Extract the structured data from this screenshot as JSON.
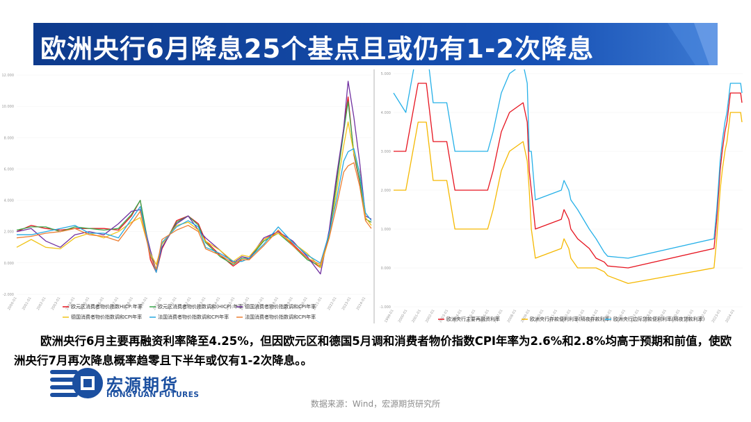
{
  "page": {
    "title": "欧洲央行6月降息25个基点且或仍有1-2次降息",
    "body_text": "欧洲央行6月主要再融资利率降至4.25%，但因欧元区和德国5月调和消费者物价指数CPI年率为2.6%和2.8%均高于预期和前值，使欧洲央行7月再次降息概率趋零且下半年或仅有1-2次降息。。",
    "source": "数据来源：Wind，宏源期货研究所",
    "logo_cn": "宏源期货",
    "logo_en": "HONGYUAN FUTURES"
  },
  "colors": {
    "banner": "#0d3a8c",
    "banner_light": "#3c79d2",
    "logo": "#1b4fa0"
  },
  "chart_data": [
    {
      "type": "line",
      "title": "",
      "ylim": [
        -2,
        12
      ],
      "yticks": [
        "-2.000",
        "0.000",
        "2.000",
        "4.000",
        "6.000",
        "8.000",
        "10.000",
        "12.000"
      ],
      "xlim": [
        2000,
        2024.4
      ],
      "x_range_label": "2000-01 至 2024-05",
      "legend_position": "bottom",
      "series": [
        {
          "name": "欧元区消费者物价指数HICP:年率",
          "color": "#e6131e",
          "x": [
            2000,
            2001,
            2002,
            2003,
            2004,
            2005,
            2006,
            2007,
            2007.9,
            2008.5,
            2009.2,
            2009.6,
            2010,
            2011,
            2011.8,
            2012.5,
            2013,
            2014,
            2014.9,
            2015.5,
            2016,
            2017,
            2018,
            2019,
            2020,
            2020.9,
            2021.5,
            2022,
            2022.5,
            2022.8,
            2023.2,
            2023.6,
            2024,
            2024.4
          ],
          "y": [
            2.0,
            2.4,
            2.2,
            2.1,
            2.2,
            2.2,
            2.2,
            2.1,
            3.0,
            4.0,
            0.2,
            -0.6,
            0.9,
            2.7,
            3.0,
            2.5,
            1.4,
            0.5,
            -0.2,
            0.2,
            0.2,
            1.5,
            2.0,
            1.2,
            0.3,
            -0.3,
            1.9,
            5.1,
            8.6,
            10.6,
            6.9,
            5.2,
            2.8,
            2.6
          ]
        },
        {
          "name": "欧元区消费者物价指数调和(HICP):年率",
          "color": "#38a84a",
          "x": [
            2000,
            2001,
            2002,
            2003,
            2004,
            2005,
            2006,
            2007,
            2007.9,
            2008.5,
            2009.2,
            2009.6,
            2010,
            2011,
            2011.8,
            2012.5,
            2013,
            2014,
            2014.9,
            2015.5,
            2016,
            2017,
            2018,
            2019,
            2020,
            2020.9,
            2021.5,
            2022,
            2022.5,
            2022.8,
            2023.2,
            2023.6,
            2024,
            2024.4
          ],
          "y": [
            2.1,
            2.3,
            2.3,
            2.0,
            2.3,
            2.2,
            2.1,
            2.2,
            3.1,
            4.0,
            0.5,
            -0.4,
            1.0,
            2.6,
            3.0,
            2.4,
            1.3,
            0.4,
            -0.1,
            0.3,
            0.3,
            1.4,
            1.9,
            1.1,
            0.2,
            -0.2,
            1.8,
            5.0,
            8.4,
            10.3,
            7.0,
            5.3,
            2.8,
            2.6
          ]
        },
        {
          "name": "德国消费者物价指数调和CPI年率",
          "color": "#7030a0",
          "x": [
            2000,
            2001,
            2002,
            2003,
            2004,
            2005,
            2006,
            2007,
            2007.9,
            2008.5,
            2009.2,
            2009.6,
            2010,
            2011,
            2011.8,
            2012.5,
            2013,
            2014,
            2014.9,
            2015.5,
            2016,
            2017,
            2018,
            2019,
            2020,
            2020.9,
            2021.5,
            2022,
            2022.5,
            2022.8,
            2023.2,
            2023.6,
            2024,
            2024.4
          ],
          "y": [
            2.0,
            2.2,
            1.4,
            1.0,
            1.8,
            2.0,
            1.8,
            2.5,
            3.3,
            3.4,
            0.8,
            -0.5,
            1.0,
            2.5,
            3.0,
            2.1,
            1.6,
            0.8,
            0.0,
            0.4,
            0.3,
            1.6,
            2.0,
            1.4,
            0.4,
            -0.7,
            2.1,
            5.5,
            8.6,
            11.6,
            9.3,
            6.4,
            3.0,
            2.8
          ]
        },
        {
          "name": "德国消费者物价指数调和CPI年率",
          "color": "#f0c419",
          "x": [
            2000,
            2001,
            2002,
            2003,
            2004,
            2005,
            2006,
            2007,
            2007.9,
            2008.5,
            2009.2,
            2009.6,
            2010,
            2011,
            2011.8,
            2012.5,
            2013,
            2014,
            2014.9,
            2015.5,
            2016,
            2017,
            2018,
            2019,
            2020,
            2020.9,
            2021.5,
            2022,
            2022.5,
            2022.8,
            2023.2,
            2023.6,
            2024,
            2024.4
          ],
          "y": [
            1.0,
            1.5,
            1.0,
            0.9,
            1.6,
            1.9,
            1.6,
            2.0,
            2.6,
            2.9,
            0.6,
            -0.1,
            1.2,
            2.4,
            2.6,
            2.1,
            1.4,
            0.8,
            0.1,
            0.5,
            0.4,
            1.5,
            1.9,
            1.3,
            0.6,
            -0.3,
            1.6,
            4.5,
            7.5,
            9.0,
            7.0,
            5.8,
            2.9,
            2.4
          ]
        },
        {
          "name": "法国消费者物价指数调和CPI年率",
          "color": "#25a8e0",
          "x": [
            2000,
            2001,
            2002,
            2003,
            2004,
            2005,
            2006,
            2007,
            2007.9,
            2008.5,
            2009.2,
            2009.6,
            2010,
            2011,
            2011.8,
            2012.5,
            2013,
            2014,
            2014.9,
            2015.5,
            2016,
            2017,
            2018,
            2019,
            2020,
            2020.9,
            2021.5,
            2022,
            2022.5,
            2022.8,
            2023.2,
            2023.6,
            2024,
            2024.4
          ],
          "y": [
            1.8,
            1.8,
            2.0,
            2.2,
            2.4,
            1.9,
            1.9,
            1.6,
            2.8,
            3.6,
            0.5,
            -0.6,
            1.3,
            2.3,
            2.7,
            2.3,
            1.0,
            0.6,
            0.1,
            0.1,
            0.3,
            1.2,
            2.3,
            1.3,
            0.5,
            0.0,
            1.9,
            4.0,
            6.5,
            7.1,
            7.3,
            5.7,
            3.2,
            2.7
          ]
        },
        {
          "name": "法国消费者物价指数调和CPI年率",
          "color": "#ed7d31",
          "x": [
            2000,
            2001,
            2002,
            2003,
            2004,
            2005,
            2006,
            2007,
            2007.9,
            2008.5,
            2009.2,
            2009.6,
            2010,
            2011,
            2011.8,
            2012.5,
            2013,
            2014,
            2014.9,
            2015.5,
            2016,
            2017,
            2018,
            2019,
            2020,
            2020.9,
            2021.5,
            2022,
            2022.5,
            2022.8,
            2023.2,
            2023.6,
            2024,
            2024.4
          ],
          "y": [
            1.6,
            1.7,
            1.9,
            2.0,
            2.2,
            1.8,
            1.7,
            1.4,
            2.5,
            3.3,
            0.4,
            -0.4,
            1.5,
            2.1,
            2.4,
            2.0,
            0.9,
            0.5,
            0.0,
            0.2,
            0.2,
            1.1,
            2.1,
            1.1,
            0.3,
            -0.1,
            1.6,
            3.6,
            5.8,
            6.2,
            6.4,
            4.9,
            2.7,
            2.2
          ]
        }
      ]
    },
    {
      "type": "line",
      "title": "",
      "ylim": [
        -1,
        5
      ],
      "yticks": [
        "-1.000",
        "0.000",
        "1.000",
        "2.000",
        "3.000",
        "4.000",
        "5.000"
      ],
      "xlim": [
        1999,
        2024.6
      ],
      "x_range_label": "1999-01 至 2024-06",
      "legend_position": "bottom",
      "series": [
        {
          "name": "欧洲央行主要再融资利率",
          "color": "#e6131e",
          "x": [
            1999,
            1999.9,
            2000.8,
            2001.4,
            2001.9,
            2002.9,
            2003.5,
            2005.9,
            2006.3,
            2006.6,
            2006.9,
            2007.2,
            2007.5,
            2008.5,
            2008.8,
            2008.95,
            2009.1,
            2009.4,
            2011.3,
            2011.5,
            2011.85,
            2012.0,
            2012.5,
            2013.35,
            2013.85,
            2014.45,
            2014.7,
            2016.2,
            2022.5,
            2022.7,
            2022.85,
            2022.95,
            2023.1,
            2023.3,
            2023.45,
            2023.7,
            2024.45,
            2024.55
          ],
          "y": [
            3.0,
            3.0,
            4.75,
            4.75,
            3.25,
            3.25,
            2.0,
            2.0,
            2.5,
            3.0,
            3.5,
            3.75,
            4.0,
            4.25,
            3.75,
            2.5,
            2.0,
            1.0,
            1.25,
            1.5,
            1.25,
            1.0,
            0.75,
            0.5,
            0.25,
            0.15,
            0.05,
            0.0,
            0.5,
            1.25,
            2.0,
            2.5,
            3.0,
            3.5,
            3.75,
            4.5,
            4.5,
            4.25
          ]
        },
        {
          "name": "欧洲央行存款便利利率(隔夜存款利率)",
          "color": "#f5b800",
          "x": [
            1999,
            1999.9,
            2000.8,
            2001.4,
            2001.9,
            2002.9,
            2003.5,
            2005.9,
            2006.3,
            2006.6,
            2006.9,
            2007.2,
            2007.5,
            2008.5,
            2008.8,
            2008.95,
            2009.1,
            2009.4,
            2011.3,
            2011.5,
            2011.85,
            2012.0,
            2012.5,
            2013.35,
            2013.85,
            2014.45,
            2014.7,
            2016.2,
            2022.5,
            2022.7,
            2022.85,
            2022.95,
            2023.1,
            2023.3,
            2023.45,
            2023.7,
            2024.45,
            2024.55
          ],
          "y": [
            2.0,
            2.0,
            3.75,
            3.75,
            2.25,
            2.25,
            1.0,
            1.0,
            1.5,
            2.0,
            2.5,
            2.75,
            3.0,
            3.25,
            2.75,
            2.0,
            1.0,
            0.25,
            0.5,
            0.75,
            0.5,
            0.25,
            0.0,
            0.0,
            0.0,
            -0.1,
            -0.2,
            -0.4,
            0.0,
            0.75,
            1.5,
            2.0,
            2.5,
            3.0,
            3.25,
            4.0,
            4.0,
            3.75
          ]
        },
        {
          "name": "欧洲央行边际贷款便利利率(隔夜贷款利率)",
          "color": "#25b0e8",
          "x": [
            1999,
            1999.9,
            2000.8,
            2001.4,
            2001.9,
            2002.9,
            2003.5,
            2005.9,
            2006.3,
            2006.6,
            2006.9,
            2007.2,
            2007.5,
            2008.5,
            2008.8,
            2008.95,
            2009.1,
            2009.4,
            2011.3,
            2011.5,
            2011.85,
            2012.0,
            2012.5,
            2013.35,
            2013.85,
            2014.45,
            2014.7,
            2016.2,
            2022.5,
            2022.7,
            2022.85,
            2022.95,
            2023.1,
            2023.3,
            2023.45,
            2023.7,
            2024.45,
            2024.55
          ],
          "y": [
            4.5,
            4.0,
            5.75,
            5.75,
            4.25,
            4.25,
            3.0,
            3.0,
            3.5,
            4.0,
            4.5,
            4.75,
            5.0,
            5.25,
            4.75,
            3.0,
            3.0,
            1.75,
            2.0,
            2.25,
            2.0,
            1.75,
            1.5,
            1.0,
            0.75,
            0.4,
            0.3,
            0.25,
            0.75,
            1.5,
            2.25,
            2.75,
            3.25,
            3.75,
            4.0,
            4.75,
            4.75,
            4.5
          ]
        }
      ]
    }
  ]
}
